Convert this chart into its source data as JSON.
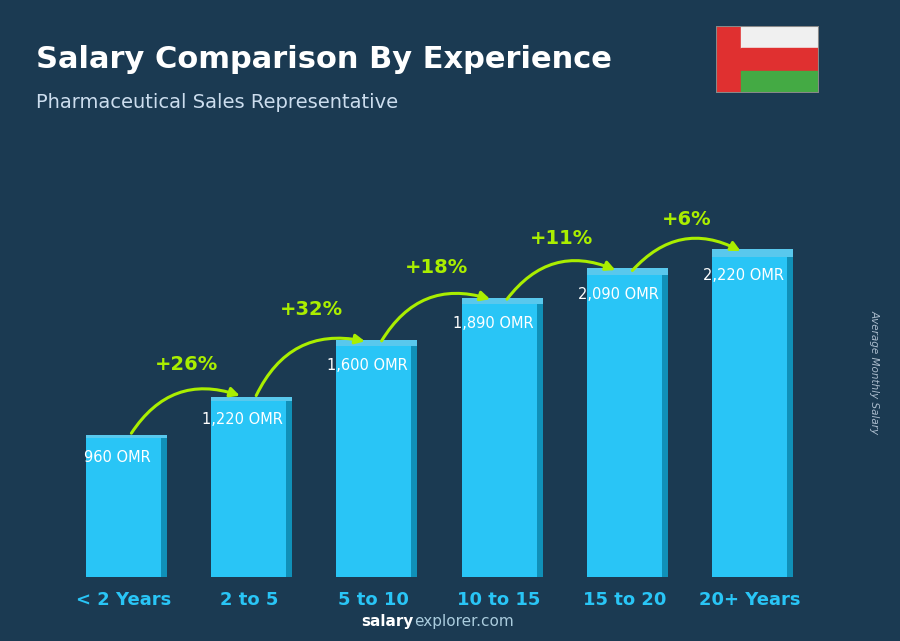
{
  "title": "Salary Comparison By Experience",
  "subtitle": "Pharmaceutical Sales Representative",
  "categories": [
    "< 2 Years",
    "2 to 5",
    "5 to 10",
    "10 to 15",
    "15 to 20",
    "20+ Years"
  ],
  "values": [
    960,
    1220,
    1600,
    1890,
    2090,
    2220
  ],
  "bar_color": "#29C5F6",
  "bar_color_dark": "#1090B8",
  "bar_color_top": "#60D8FF",
  "background_color": "#1b3a52",
  "title_color": "#FFFFFF",
  "subtitle_color": "#CCDDEE",
  "pct_color": "#AAEE00",
  "salary_label_color": "#FFFFFF",
  "xlabel_color": "#29C5F6",
  "percentages": [
    null,
    "+26%",
    "+32%",
    "+18%",
    "+11%",
    "+6%"
  ],
  "salary_labels": [
    "960 OMR",
    "1,220 OMR",
    "1,600 OMR",
    "1,890 OMR",
    "2,090 OMR",
    "2,220 OMR"
  ],
  "footer_salary_color": "#FFFFFF",
  "footer_explorer_color": "#AACCEE",
  "ylabel_text": "Average Monthly Salary",
  "figsize": [
    9.0,
    6.41
  ],
  "dpi": 100,
  "bar_width": 0.6,
  "ylim_max": 3200
}
